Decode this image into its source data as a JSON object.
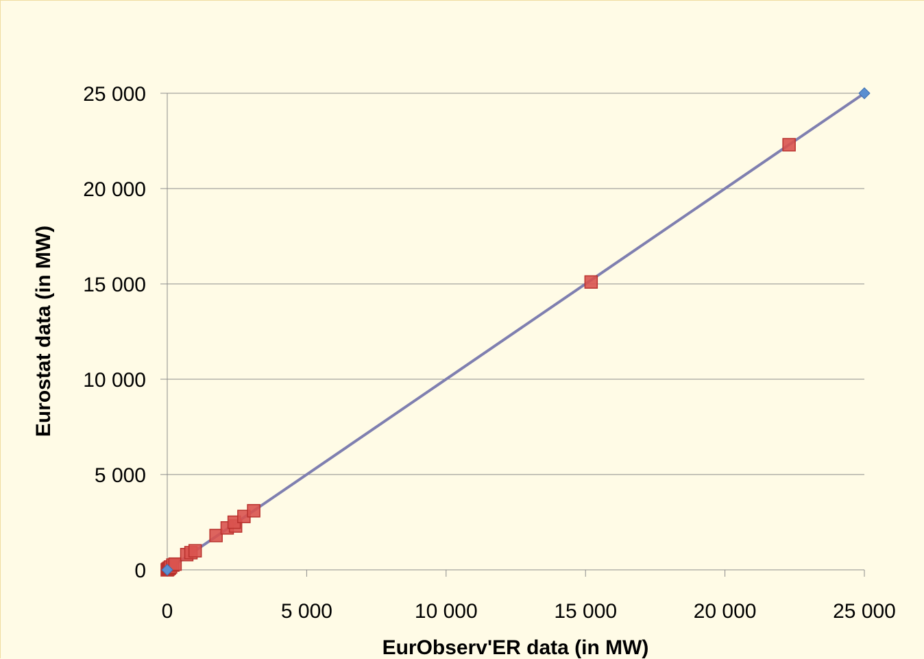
{
  "chart_data": {
    "type": "scatter",
    "title": "",
    "xlabel": "EurObserv'ER data (in MW)",
    "ylabel": "Eurostat data (in MW)",
    "xlim": [
      0,
      25000
    ],
    "ylim": [
      0,
      25000
    ],
    "x_ticks": [
      0,
      5000,
      10000,
      15000,
      20000,
      25000
    ],
    "y_ticks": [
      0,
      5000,
      10000,
      15000,
      20000,
      25000
    ],
    "x_tick_labels": [
      "0",
      "5 000",
      "10 000",
      "15 000",
      "20 000",
      "25 000"
    ],
    "y_tick_labels": [
      "0",
      "5 000",
      "10 000",
      "15 000",
      "20 000",
      "25 000"
    ],
    "grid": "horizontal",
    "legend": "none",
    "series": [
      {
        "marker": "square",
        "color": "#d9534f",
        "points": [
          {
            "x": 0,
            "y": 0
          },
          {
            "x": 20,
            "y": 30
          },
          {
            "x": 50,
            "y": 60
          },
          {
            "x": 80,
            "y": 100
          },
          {
            "x": 120,
            "y": 150
          },
          {
            "x": 200,
            "y": 250
          },
          {
            "x": 280,
            "y": 300
          },
          {
            "x": 700,
            "y": 800
          },
          {
            "x": 850,
            "y": 900
          },
          {
            "x": 1000,
            "y": 1000
          },
          {
            "x": 1750,
            "y": 1800
          },
          {
            "x": 2150,
            "y": 2200
          },
          {
            "x": 2450,
            "y": 2300
          },
          {
            "x": 2400,
            "y": 2500
          },
          {
            "x": 2750,
            "y": 2800
          },
          {
            "x": 3100,
            "y": 3100
          },
          {
            "x": 15200,
            "y": 15100
          },
          {
            "x": 22300,
            "y": 22300
          }
        ]
      },
      {
        "marker": "diamond",
        "color": "#5b8fd1",
        "line_color": "#7f7fb0",
        "points": [
          {
            "x": 0,
            "y": 0
          },
          {
            "x": 25000,
            "y": 25000
          }
        ]
      }
    ]
  }
}
